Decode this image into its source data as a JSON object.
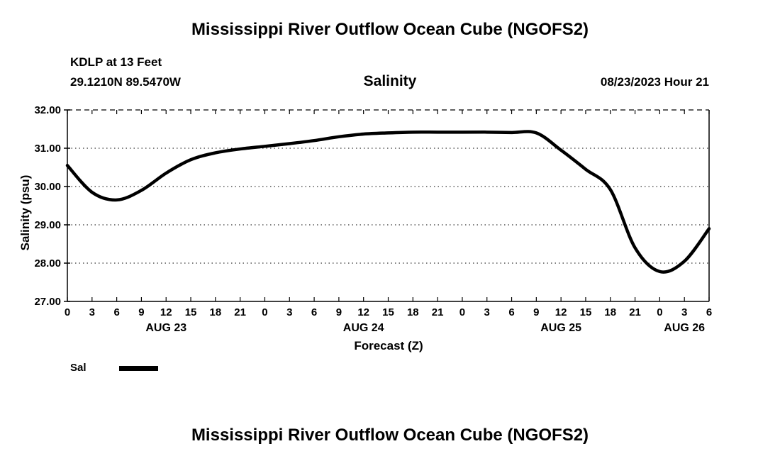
{
  "page": {
    "top_title": "Mississippi River Outflow Ocean Cube (NGOFS2)",
    "bottom_title": "Mississippi River Outflow Ocean Cube (NGOFS2)"
  },
  "header": {
    "station_line1": "KDLP at 13 Feet",
    "station_line2": "29.1210N  89.5470W",
    "plot_title": "Salinity",
    "datetime": "08/23/2023 Hour 21"
  },
  "legend": {
    "label": "Sal",
    "line_color": "#000000"
  },
  "chart_data": {
    "type": "line",
    "title": "Salinity",
    "xlabel": "Forecast (Z)",
    "ylabel": "Salinity (psu)",
    "ylim": [
      27,
      32
    ],
    "y_ticks": [
      "27.00",
      "28.00",
      "29.00",
      "30.00",
      "31.00",
      "32.00"
    ],
    "x_hours": [
      0,
      3,
      6,
      9,
      12,
      15,
      18,
      21,
      24,
      27,
      30,
      33,
      36,
      39,
      42,
      45,
      48,
      51,
      54,
      57,
      60,
      63,
      66,
      69,
      72,
      75,
      78
    ],
    "x_tick_labels": [
      "0",
      "3",
      "6",
      "9",
      "12",
      "15",
      "18",
      "21",
      "0",
      "3",
      "6",
      "9",
      "12",
      "15",
      "18",
      "21",
      "0",
      "3",
      "6",
      "9",
      "12",
      "15",
      "18",
      "21",
      "0",
      "3",
      "6"
    ],
    "day_labels": [
      {
        "label": "AUG 23",
        "hour": 12
      },
      {
        "label": "AUG 24",
        "hour": 36
      },
      {
        "label": "AUG 25",
        "hour": 60
      },
      {
        "label": "AUG 26",
        "hour": 75
      }
    ],
    "grid": "horizontal dotted, top border dashed",
    "legend_position": "bottom-left",
    "series": [
      {
        "name": "Sal",
        "color": "#000000",
        "hours": [
          0,
          3,
          6,
          9,
          12,
          15,
          18,
          21,
          24,
          27,
          30,
          33,
          36,
          39,
          42,
          45,
          48,
          51,
          54,
          57,
          60,
          63,
          66,
          69,
          72,
          75,
          78
        ],
        "values": [
          30.55,
          29.85,
          29.65,
          29.9,
          30.35,
          30.7,
          30.88,
          30.98,
          31.05,
          31.12,
          31.2,
          31.3,
          31.37,
          31.4,
          31.42,
          31.42,
          31.42,
          31.42,
          31.41,
          31.4,
          30.95,
          30.45,
          29.92,
          28.4,
          27.78,
          28.05,
          28.9
        ]
      }
    ]
  }
}
